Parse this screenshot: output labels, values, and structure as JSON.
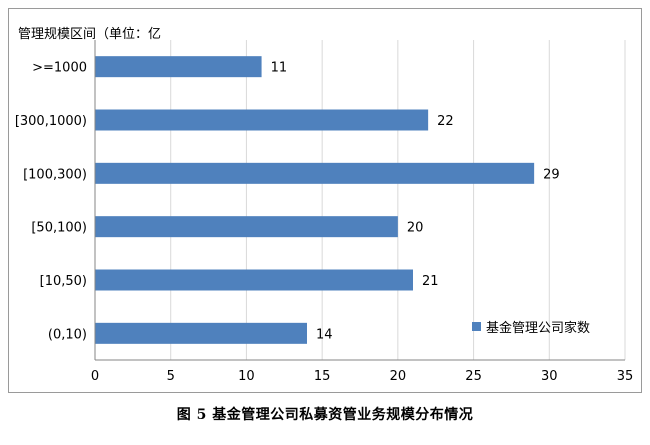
{
  "chart_data": {
    "type": "bar",
    "orientation": "horizontal",
    "ylabel": "管理规模区间（单位：亿",
    "categories": [
      ">=1000",
      "[300,1000)",
      "[100,300)",
      "[50,100)",
      "[10,50)",
      "(0,10)"
    ],
    "series": [
      {
        "name": "基金管理公司家数",
        "values": [
          11,
          22,
          29,
          20,
          21,
          14
        ],
        "color": "#4f81bd"
      }
    ],
    "xlim": [
      0,
      35
    ],
    "xticks": [
      0,
      5,
      10,
      15,
      20,
      25,
      30,
      35
    ],
    "grid": "vertical",
    "legend_position": "bottom-right",
    "data_labels": true
  },
  "caption": "图 5  基金管理公司私募资管业务规模分布情况"
}
